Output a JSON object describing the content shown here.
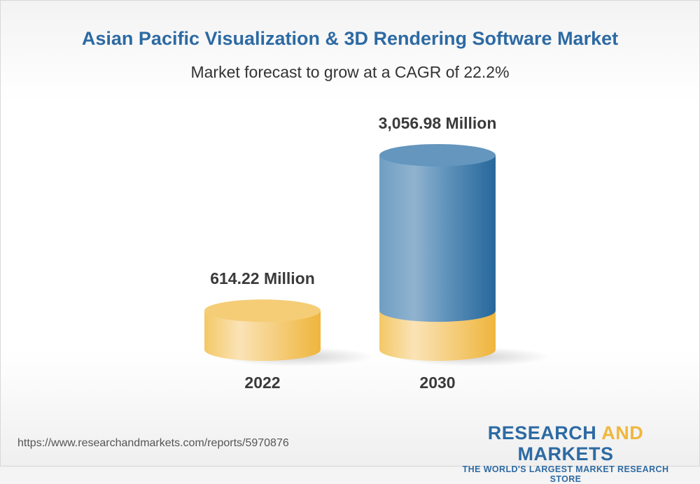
{
  "chart_data": {
    "type": "bar",
    "style": "3d-cylinder",
    "title": "Asian Pacific Visualization & 3D Rendering Software Market",
    "subtitle": "Market forecast to grow at a CAGR of 22.2%",
    "categories": [
      "2022",
      "2030"
    ],
    "values": [
      614.22,
      3056.98
    ],
    "data_labels": [
      "614.22 Million",
      "3,056.98 Million"
    ],
    "unit": "Million",
    "grid": false,
    "colors": {
      "base": "#f2c45f",
      "growth": "#3f7fb0",
      "title": "#2d6aa3"
    }
  },
  "footer": {
    "url": "https://www.researchandmarkets.com/reports/5970876",
    "logo": {
      "word1": "RESEARCH",
      "word2": "AND",
      "word3": "MARKETS",
      "tagline": "THE WORLD'S LARGEST MARKET RESEARCH STORE"
    }
  }
}
